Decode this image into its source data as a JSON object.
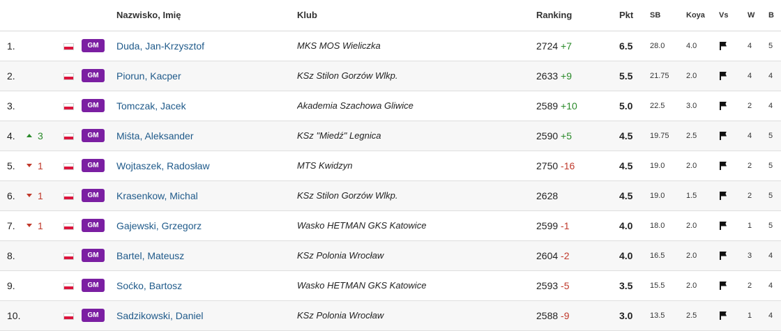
{
  "headers": {
    "name": "Nazwisko, Imię",
    "club": "Klub",
    "ranking": "Ranking",
    "points": "Pkt",
    "sb": "SB",
    "koya": "Koya",
    "vs": "Vs",
    "w": "W",
    "b": "B"
  },
  "rows": [
    {
      "pos": "1.",
      "move": "",
      "move_dir": "",
      "title": "GM",
      "name": "Duda, Jan-Krzysztof",
      "club": "MKS MOS Wieliczka",
      "rating": "2724",
      "change": "+7",
      "pts": "6.5",
      "sb": "28.0",
      "koya": "4.0",
      "w": "4",
      "b": "5"
    },
    {
      "pos": "2.",
      "move": "",
      "move_dir": "",
      "title": "GM",
      "name": "Piorun, Kacper",
      "club": "KSz Stilon Gorzów Wlkp.",
      "rating": "2633",
      "change": "+9",
      "pts": "5.5",
      "sb": "21.75",
      "koya": "2.0",
      "w": "4",
      "b": "4"
    },
    {
      "pos": "3.",
      "move": "",
      "move_dir": "",
      "title": "GM",
      "name": "Tomczak, Jacek",
      "club": "Akademia Szachowa Gliwice",
      "rating": "2589",
      "change": "+10",
      "pts": "5.0",
      "sb": "22.5",
      "koya": "3.0",
      "w": "2",
      "b": "4"
    },
    {
      "pos": "4.",
      "move": "3",
      "move_dir": "up",
      "title": "GM",
      "name": "Miśta, Aleksander",
      "club": "KSz \"Miedź\" Legnica",
      "rating": "2590",
      "change": "+5",
      "pts": "4.5",
      "sb": "19.75",
      "koya": "2.5",
      "w": "4",
      "b": "5"
    },
    {
      "pos": "5.",
      "move": "1",
      "move_dir": "down",
      "title": "GM",
      "name": "Wojtaszek, Radosław",
      "club": "MTS Kwidzyn",
      "rating": "2750",
      "change": "-16",
      "pts": "4.5",
      "sb": "19.0",
      "koya": "2.0",
      "w": "2",
      "b": "5"
    },
    {
      "pos": "6.",
      "move": "1",
      "move_dir": "down",
      "title": "GM",
      "name": "Krasenkow, Michal",
      "club": "KSz Stilon Gorzów Wlkp.",
      "rating": "2628",
      "change": "",
      "pts": "4.5",
      "sb": "19.0",
      "koya": "1.5",
      "w": "2",
      "b": "5"
    },
    {
      "pos": "7.",
      "move": "1",
      "move_dir": "down",
      "title": "GM",
      "name": "Gajewski, Grzegorz",
      "club": "Wasko HETMAN GKS Katowice",
      "rating": "2599",
      "change": "-1",
      "pts": "4.0",
      "sb": "18.0",
      "koya": "2.0",
      "w": "1",
      "b": "5"
    },
    {
      "pos": "8.",
      "move": "",
      "move_dir": "",
      "title": "GM",
      "name": "Bartel, Mateusz",
      "club": "KSz Polonia Wrocław",
      "rating": "2604",
      "change": "-2",
      "pts": "4.0",
      "sb": "16.5",
      "koya": "2.0",
      "w": "3",
      "b": "4"
    },
    {
      "pos": "9.",
      "move": "",
      "move_dir": "",
      "title": "GM",
      "name": "Soćko, Bartosz",
      "club": "Wasko HETMAN GKS Katowice",
      "rating": "2593",
      "change": "-5",
      "pts": "3.5",
      "sb": "15.5",
      "koya": "2.0",
      "w": "2",
      "b": "4"
    },
    {
      "pos": "10.",
      "move": "",
      "move_dir": "",
      "title": "GM",
      "name": "Sadzikowski, Daniel",
      "club": "KSz Polonia Wrocław",
      "rating": "2588",
      "change": "-9",
      "pts": "3.0",
      "sb": "13.5",
      "koya": "2.5",
      "w": "1",
      "b": "4"
    }
  ],
  "icons": {
    "country_flag": "poland-flag-icon",
    "vs_flag": "flag-icon",
    "up": "arrow-up-icon",
    "down": "arrow-down-icon"
  },
  "colors": {
    "badge": "#7b1fa2",
    "positive": "#2a8a2a",
    "negative": "#c0392b",
    "link": "#1f5a8a"
  }
}
